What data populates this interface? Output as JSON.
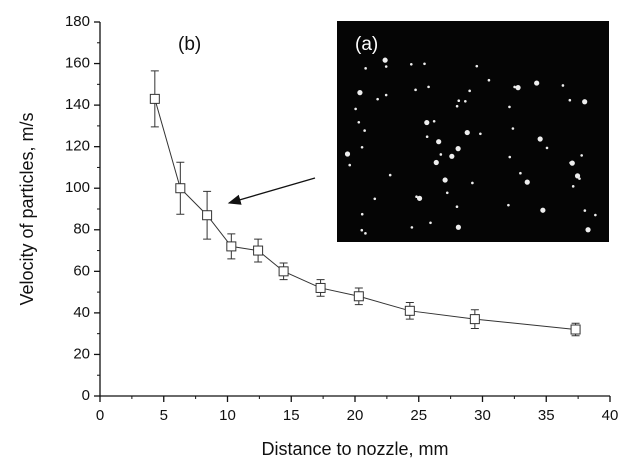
{
  "chart_data": {
    "type": "line",
    "x_label": "Distance to nozzle, mm",
    "y_label": "Velocity of particles, m/s",
    "annotations": [
      "(a)",
      "(b)"
    ],
    "x": [
      4.3,
      6.3,
      8.4,
      10.3,
      12.4,
      14.4,
      17.3,
      20.3,
      24.3,
      29.4,
      37.3
    ],
    "values": [
      143,
      100,
      87,
      72,
      70,
      60,
      52,
      48,
      41,
      37,
      32
    ],
    "errors": [
      13.5,
      12.5,
      11.5,
      6,
      5.5,
      4,
      4,
      4,
      4,
      4.5,
      3
    ],
    "color": "#333333",
    "xlim": [
      0,
      40
    ],
    "xticks": [
      0,
      5,
      10,
      15,
      20,
      25,
      30,
      35,
      40
    ],
    "ylim": [
      0,
      180
    ],
    "yticks": [
      0,
      20,
      40,
      60,
      80,
      100,
      120,
      140,
      160,
      180
    ],
    "grid": false
  }
}
